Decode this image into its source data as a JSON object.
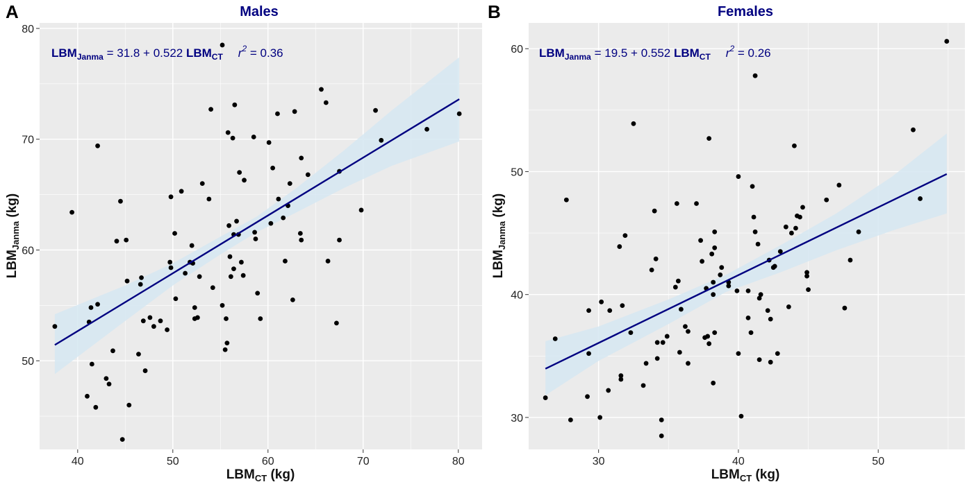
{
  "colors": {
    "panel_bg": "#ebebeb",
    "points": "#000000",
    "line": "#000080",
    "band": "#d6e7f2",
    "title": "#000080"
  },
  "chart_data": [
    {
      "type": "scatter",
      "letter": "A",
      "title": "Males",
      "xlabel": {
        "main": "LBM",
        "sub": "CT",
        "unit": " (kg)"
      },
      "ylabel": {
        "main": "LBM",
        "sub": "Janma",
        "unit": " (kg)"
      },
      "xlim": [
        36,
        82.5
      ],
      "ylim": [
        42,
        80.5
      ],
      "xticks": [
        40,
        50,
        60,
        70,
        80
      ],
      "yticks": [
        50,
        60,
        70,
        80
      ],
      "equation": {
        "lhs": "LBM",
        "lhs_sub": "Janma",
        "middle": " = 31.8 + 0.522 ",
        "rhs": "LBM",
        "rhs_sub": "CT",
        "r_label": "r",
        "r_exp": "2",
        "r_value": " = 0.36"
      },
      "fit": {
        "intercept": 31.8,
        "slope": 0.522,
        "x_range": [
          37.6,
          80.1
        ]
      },
      "band": [
        {
          "x": 37.6,
          "lo": 48.8,
          "hi": 54.2
        },
        {
          "x": 45,
          "lo": 53.6,
          "hi": 56.8
        },
        {
          "x": 50,
          "lo": 56.8,
          "hi": 58.8
        },
        {
          "x": 55,
          "lo": 59.6,
          "hi": 61.2
        },
        {
          "x": 58.8,
          "lo": 61.6,
          "hi": 63.0
        },
        {
          "x": 63,
          "lo": 63.4,
          "hi": 65.6
        },
        {
          "x": 68,
          "lo": 65.6,
          "hi": 69.0
        },
        {
          "x": 73,
          "lo": 67.6,
          "hi": 72.6
        },
        {
          "x": 80.1,
          "lo": 69.8,
          "hi": 77.4
        }
      ],
      "points": [
        [
          37.6,
          53.1
        ],
        [
          39.4,
          63.4
        ],
        [
          41.0,
          46.8
        ],
        [
          41.2,
          53.5
        ],
        [
          41.4,
          54.8
        ],
        [
          41.5,
          49.7
        ],
        [
          41.9,
          45.8
        ],
        [
          42.1,
          55.1
        ],
        [
          42.1,
          69.4
        ],
        [
          43.0,
          48.4
        ],
        [
          43.3,
          47.9
        ],
        [
          43.7,
          50.9
        ],
        [
          44.1,
          60.8
        ],
        [
          44.5,
          64.4
        ],
        [
          44.7,
          42.9
        ],
        [
          45.1,
          60.9
        ],
        [
          45.2,
          57.2
        ],
        [
          45.4,
          46.0
        ],
        [
          46.4,
          50.6
        ],
        [
          46.6,
          56.9
        ],
        [
          46.7,
          57.5
        ],
        [
          46.9,
          53.6
        ],
        [
          47.1,
          49.1
        ],
        [
          47.6,
          53.9
        ],
        [
          48.0,
          53.1
        ],
        [
          48.7,
          53.6
        ],
        [
          49.4,
          52.8
        ],
        [
          49.7,
          58.9
        ],
        [
          49.8,
          58.4
        ],
        [
          49.8,
          64.8
        ],
        [
          50.2,
          61.5
        ],
        [
          50.3,
          55.6
        ],
        [
          50.9,
          65.3
        ],
        [
          51.3,
          57.9
        ],
        [
          51.8,
          58.9
        ],
        [
          52.0,
          60.4
        ],
        [
          52.1,
          58.8
        ],
        [
          52.3,
          54.8
        ],
        [
          52.3,
          53.8
        ],
        [
          52.6,
          53.9
        ],
        [
          52.8,
          57.6
        ],
        [
          53.1,
          66.0
        ],
        [
          53.8,
          64.6
        ],
        [
          54.0,
          72.7
        ],
        [
          54.2,
          56.6
        ],
        [
          55.2,
          78.5
        ],
        [
          55.2,
          55.0
        ],
        [
          55.5,
          51.0
        ],
        [
          55.6,
          53.8
        ],
        [
          55.7,
          51.6
        ],
        [
          55.8,
          70.6
        ],
        [
          55.9,
          62.2
        ],
        [
          56.0,
          59.4
        ],
        [
          56.1,
          57.6
        ],
        [
          56.3,
          70.1
        ],
        [
          56.4,
          61.4
        ],
        [
          56.4,
          58.3
        ],
        [
          56.5,
          73.1
        ],
        [
          56.7,
          62.6
        ],
        [
          56.9,
          61.4
        ],
        [
          57.0,
          67.0
        ],
        [
          57.2,
          58.9
        ],
        [
          57.4,
          57.7
        ],
        [
          57.5,
          66.3
        ],
        [
          58.5,
          70.2
        ],
        [
          58.6,
          61.6
        ],
        [
          58.7,
          61.0
        ],
        [
          58.9,
          56.1
        ],
        [
          59.2,
          53.8
        ],
        [
          60.1,
          69.7
        ],
        [
          60.3,
          62.4
        ],
        [
          60.5,
          67.4
        ],
        [
          61.0,
          72.3
        ],
        [
          61.1,
          64.6
        ],
        [
          61.6,
          62.9
        ],
        [
          61.8,
          59.0
        ],
        [
          62.1,
          64.0
        ],
        [
          62.3,
          66.0
        ],
        [
          62.6,
          55.5
        ],
        [
          62.8,
          72.5
        ],
        [
          63.4,
          61.5
        ],
        [
          63.5,
          68.3
        ],
        [
          63.5,
          60.9
        ],
        [
          64.2,
          66.8
        ],
        [
          65.6,
          74.5
        ],
        [
          66.1,
          73.3
        ],
        [
          66.3,
          59.0
        ],
        [
          67.2,
          53.4
        ],
        [
          67.5,
          67.1
        ],
        [
          67.5,
          60.9
        ],
        [
          69.8,
          63.6
        ],
        [
          71.3,
          72.6
        ],
        [
          71.9,
          69.9
        ],
        [
          76.7,
          70.9
        ],
        [
          80.1,
          72.3
        ]
      ]
    },
    {
      "type": "scatter",
      "letter": "B",
      "title": "Females",
      "xlabel": {
        "main": "LBM",
        "sub": "CT",
        "unit": " (kg)"
      },
      "ylabel": {
        "main": "LBM",
        "sub": "Janma",
        "unit": " (kg)"
      },
      "xlim": [
        25.0,
        56.2
      ],
      "ylim": [
        27.4,
        62.1
      ],
      "xticks": [
        30,
        40,
        50
      ],
      "yticks": [
        30,
        40,
        50,
        60
      ],
      "equation": {
        "lhs": "LBM",
        "lhs_sub": "Janma",
        "middle": " = 19.5 + 0.552 ",
        "rhs": "LBM",
        "rhs_sub": "CT",
        "r_label": "r",
        "r_exp": "2",
        "r_value": " = 0.26"
      },
      "fit": {
        "intercept": 19.5,
        "slope": 0.552,
        "x_range": [
          26.2,
          54.9
        ]
      },
      "band": [
        {
          "x": 26.2,
          "lo": 31.8,
          "hi": 36.2
        },
        {
          "x": 30,
          "lo": 34.6,
          "hi": 37.4
        },
        {
          "x": 35,
          "lo": 37.6,
          "hi": 39.6
        },
        {
          "x": 39.1,
          "lo": 40.2,
          "hi": 41.6
        },
        {
          "x": 43,
          "lo": 41.8,
          "hi": 44.0
        },
        {
          "x": 47,
          "lo": 43.6,
          "hi": 46.6
        },
        {
          "x": 51,
          "lo": 45.2,
          "hi": 49.6
        },
        {
          "x": 54.9,
          "lo": 46.6,
          "hi": 53.1
        }
      ],
      "points": [
        [
          26.2,
          31.6
        ],
        [
          26.9,
          36.4
        ],
        [
          27.7,
          47.7
        ],
        [
          28.0,
          29.8
        ],
        [
          29.2,
          31.7
        ],
        [
          29.3,
          35.2
        ],
        [
          29.3,
          38.7
        ],
        [
          30.1,
          30.0
        ],
        [
          30.2,
          39.4
        ],
        [
          30.7,
          32.2
        ],
        [
          30.8,
          38.7
        ],
        [
          31.5,
          43.9
        ],
        [
          31.6,
          33.1
        ],
        [
          31.6,
          33.4
        ],
        [
          31.7,
          39.1
        ],
        [
          31.9,
          44.8
        ],
        [
          32.3,
          36.9
        ],
        [
          32.5,
          53.9
        ],
        [
          33.2,
          32.6
        ],
        [
          33.4,
          34.4
        ],
        [
          33.8,
          42.0
        ],
        [
          34.0,
          46.8
        ],
        [
          34.1,
          42.9
        ],
        [
          34.2,
          34.8
        ],
        [
          34.2,
          36.1
        ],
        [
          34.5,
          28.5
        ],
        [
          34.5,
          29.8
        ],
        [
          34.6,
          36.1
        ],
        [
          34.9,
          36.6
        ],
        [
          35.5,
          40.6
        ],
        [
          35.6,
          47.4
        ],
        [
          35.7,
          41.1
        ],
        [
          35.8,
          35.3
        ],
        [
          35.9,
          38.8
        ],
        [
          36.2,
          37.4
        ],
        [
          36.4,
          34.4
        ],
        [
          36.4,
          37.0
        ],
        [
          37.0,
          47.4
        ],
        [
          37.3,
          44.4
        ],
        [
          37.4,
          42.7
        ],
        [
          37.6,
          36.5
        ],
        [
          37.7,
          40.5
        ],
        [
          37.8,
          36.6
        ],
        [
          37.9,
          52.7
        ],
        [
          37.9,
          36.0
        ],
        [
          38.1,
          43.3
        ],
        [
          38.2,
          40.0
        ],
        [
          38.2,
          32.8
        ],
        [
          38.2,
          41.0
        ],
        [
          38.3,
          45.1
        ],
        [
          38.3,
          36.9
        ],
        [
          38.3,
          43.8
        ],
        [
          38.7,
          41.6
        ],
        [
          38.8,
          42.2
        ],
        [
          39.3,
          41.0
        ],
        [
          39.3,
          40.7
        ],
        [
          39.9,
          40.3
        ],
        [
          40.0,
          49.6
        ],
        [
          40.0,
          35.2
        ],
        [
          40.2,
          30.1
        ],
        [
          40.7,
          40.3
        ],
        [
          40.7,
          38.1
        ],
        [
          40.9,
          36.9
        ],
        [
          41.0,
          48.8
        ],
        [
          41.1,
          46.3
        ],
        [
          41.2,
          45.1
        ],
        [
          41.2,
          57.8
        ],
        [
          41.4,
          44.1
        ],
        [
          41.5,
          39.7
        ],
        [
          41.5,
          34.7
        ],
        [
          41.6,
          40.0
        ],
        [
          42.1,
          38.7
        ],
        [
          42.2,
          42.8
        ],
        [
          42.3,
          38.0
        ],
        [
          42.3,
          34.5
        ],
        [
          42.5,
          42.2
        ],
        [
          42.6,
          42.3
        ],
        [
          42.8,
          35.2
        ],
        [
          43.0,
          43.5
        ],
        [
          43.4,
          45.5
        ],
        [
          43.6,
          39.0
        ],
        [
          43.8,
          45.0
        ],
        [
          44.0,
          52.1
        ],
        [
          44.1,
          45.4
        ],
        [
          44.2,
          46.4
        ],
        [
          44.4,
          46.3
        ],
        [
          44.6,
          47.1
        ],
        [
          44.9,
          41.5
        ],
        [
          44.9,
          41.8
        ],
        [
          45.0,
          40.4
        ],
        [
          46.3,
          47.7
        ],
        [
          47.2,
          48.9
        ],
        [
          47.6,
          38.9
        ],
        [
          48.0,
          42.8
        ],
        [
          48.6,
          45.1
        ],
        [
          52.5,
          53.4
        ],
        [
          53.0,
          47.8
        ],
        [
          54.9,
          60.6
        ]
      ]
    }
  ]
}
